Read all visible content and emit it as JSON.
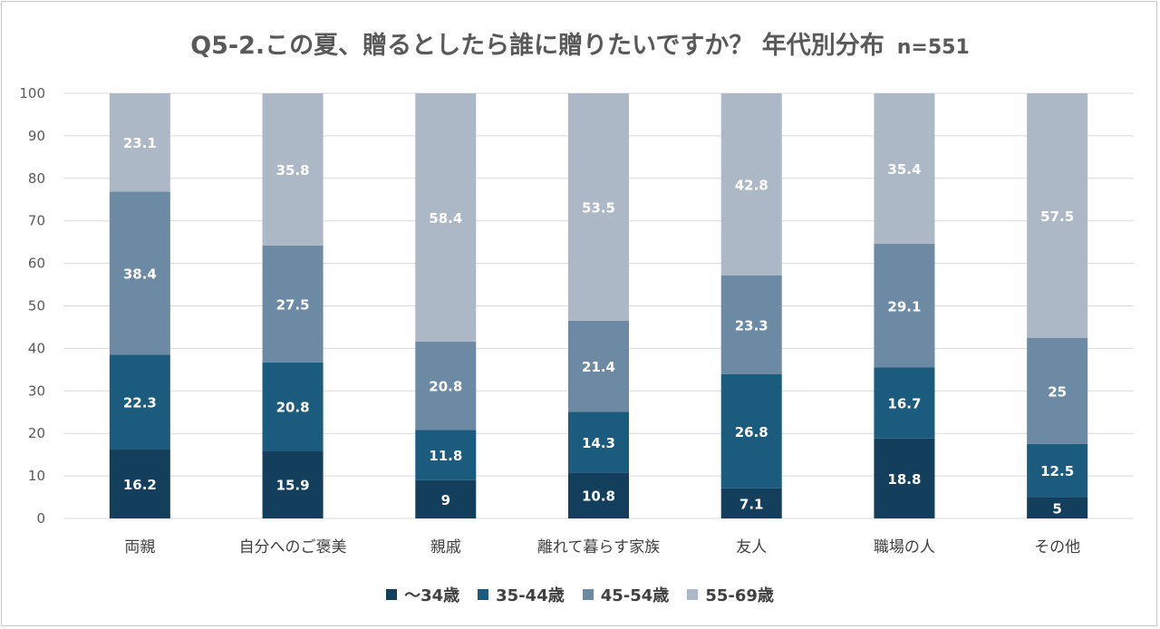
{
  "chart_data": {
    "type": "bar",
    "stacked": true,
    "percent": true,
    "title": "Q5-2.この夏、贈るとしたら誰に贈りたいですか？ 年代別分布",
    "subtitle": "n=551",
    "categories": [
      "両親",
      "自分へのご褒美",
      "親戚",
      "離れて暮らす家族",
      "友人",
      "職場の人",
      "その他"
    ],
    "series": [
      {
        "name": "〜34歳",
        "color": "#133f5c",
        "values": [
          16.2,
          15.9,
          9,
          10.8,
          7.1,
          18.8,
          5
        ]
      },
      {
        "name": "35-44歳",
        "color": "#1a5b7e",
        "values": [
          22.3,
          20.8,
          11.8,
          14.3,
          26.8,
          16.7,
          12.5
        ]
      },
      {
        "name": "45-54歳",
        "color": "#6c8aa3",
        "values": [
          38.4,
          27.5,
          20.8,
          21.4,
          23.3,
          29.1,
          25
        ]
      },
      {
        "name": "55-69歳",
        "color": "#acb8c6",
        "values": [
          23.1,
          35.8,
          58.4,
          53.5,
          42.8,
          35.4,
          57.5
        ]
      }
    ],
    "ylim": [
      0,
      100
    ],
    "yticks": [
      0,
      10,
      20,
      30,
      40,
      50,
      60,
      70,
      80,
      90,
      100
    ],
    "grid": true,
    "legend_position": "bottom"
  }
}
